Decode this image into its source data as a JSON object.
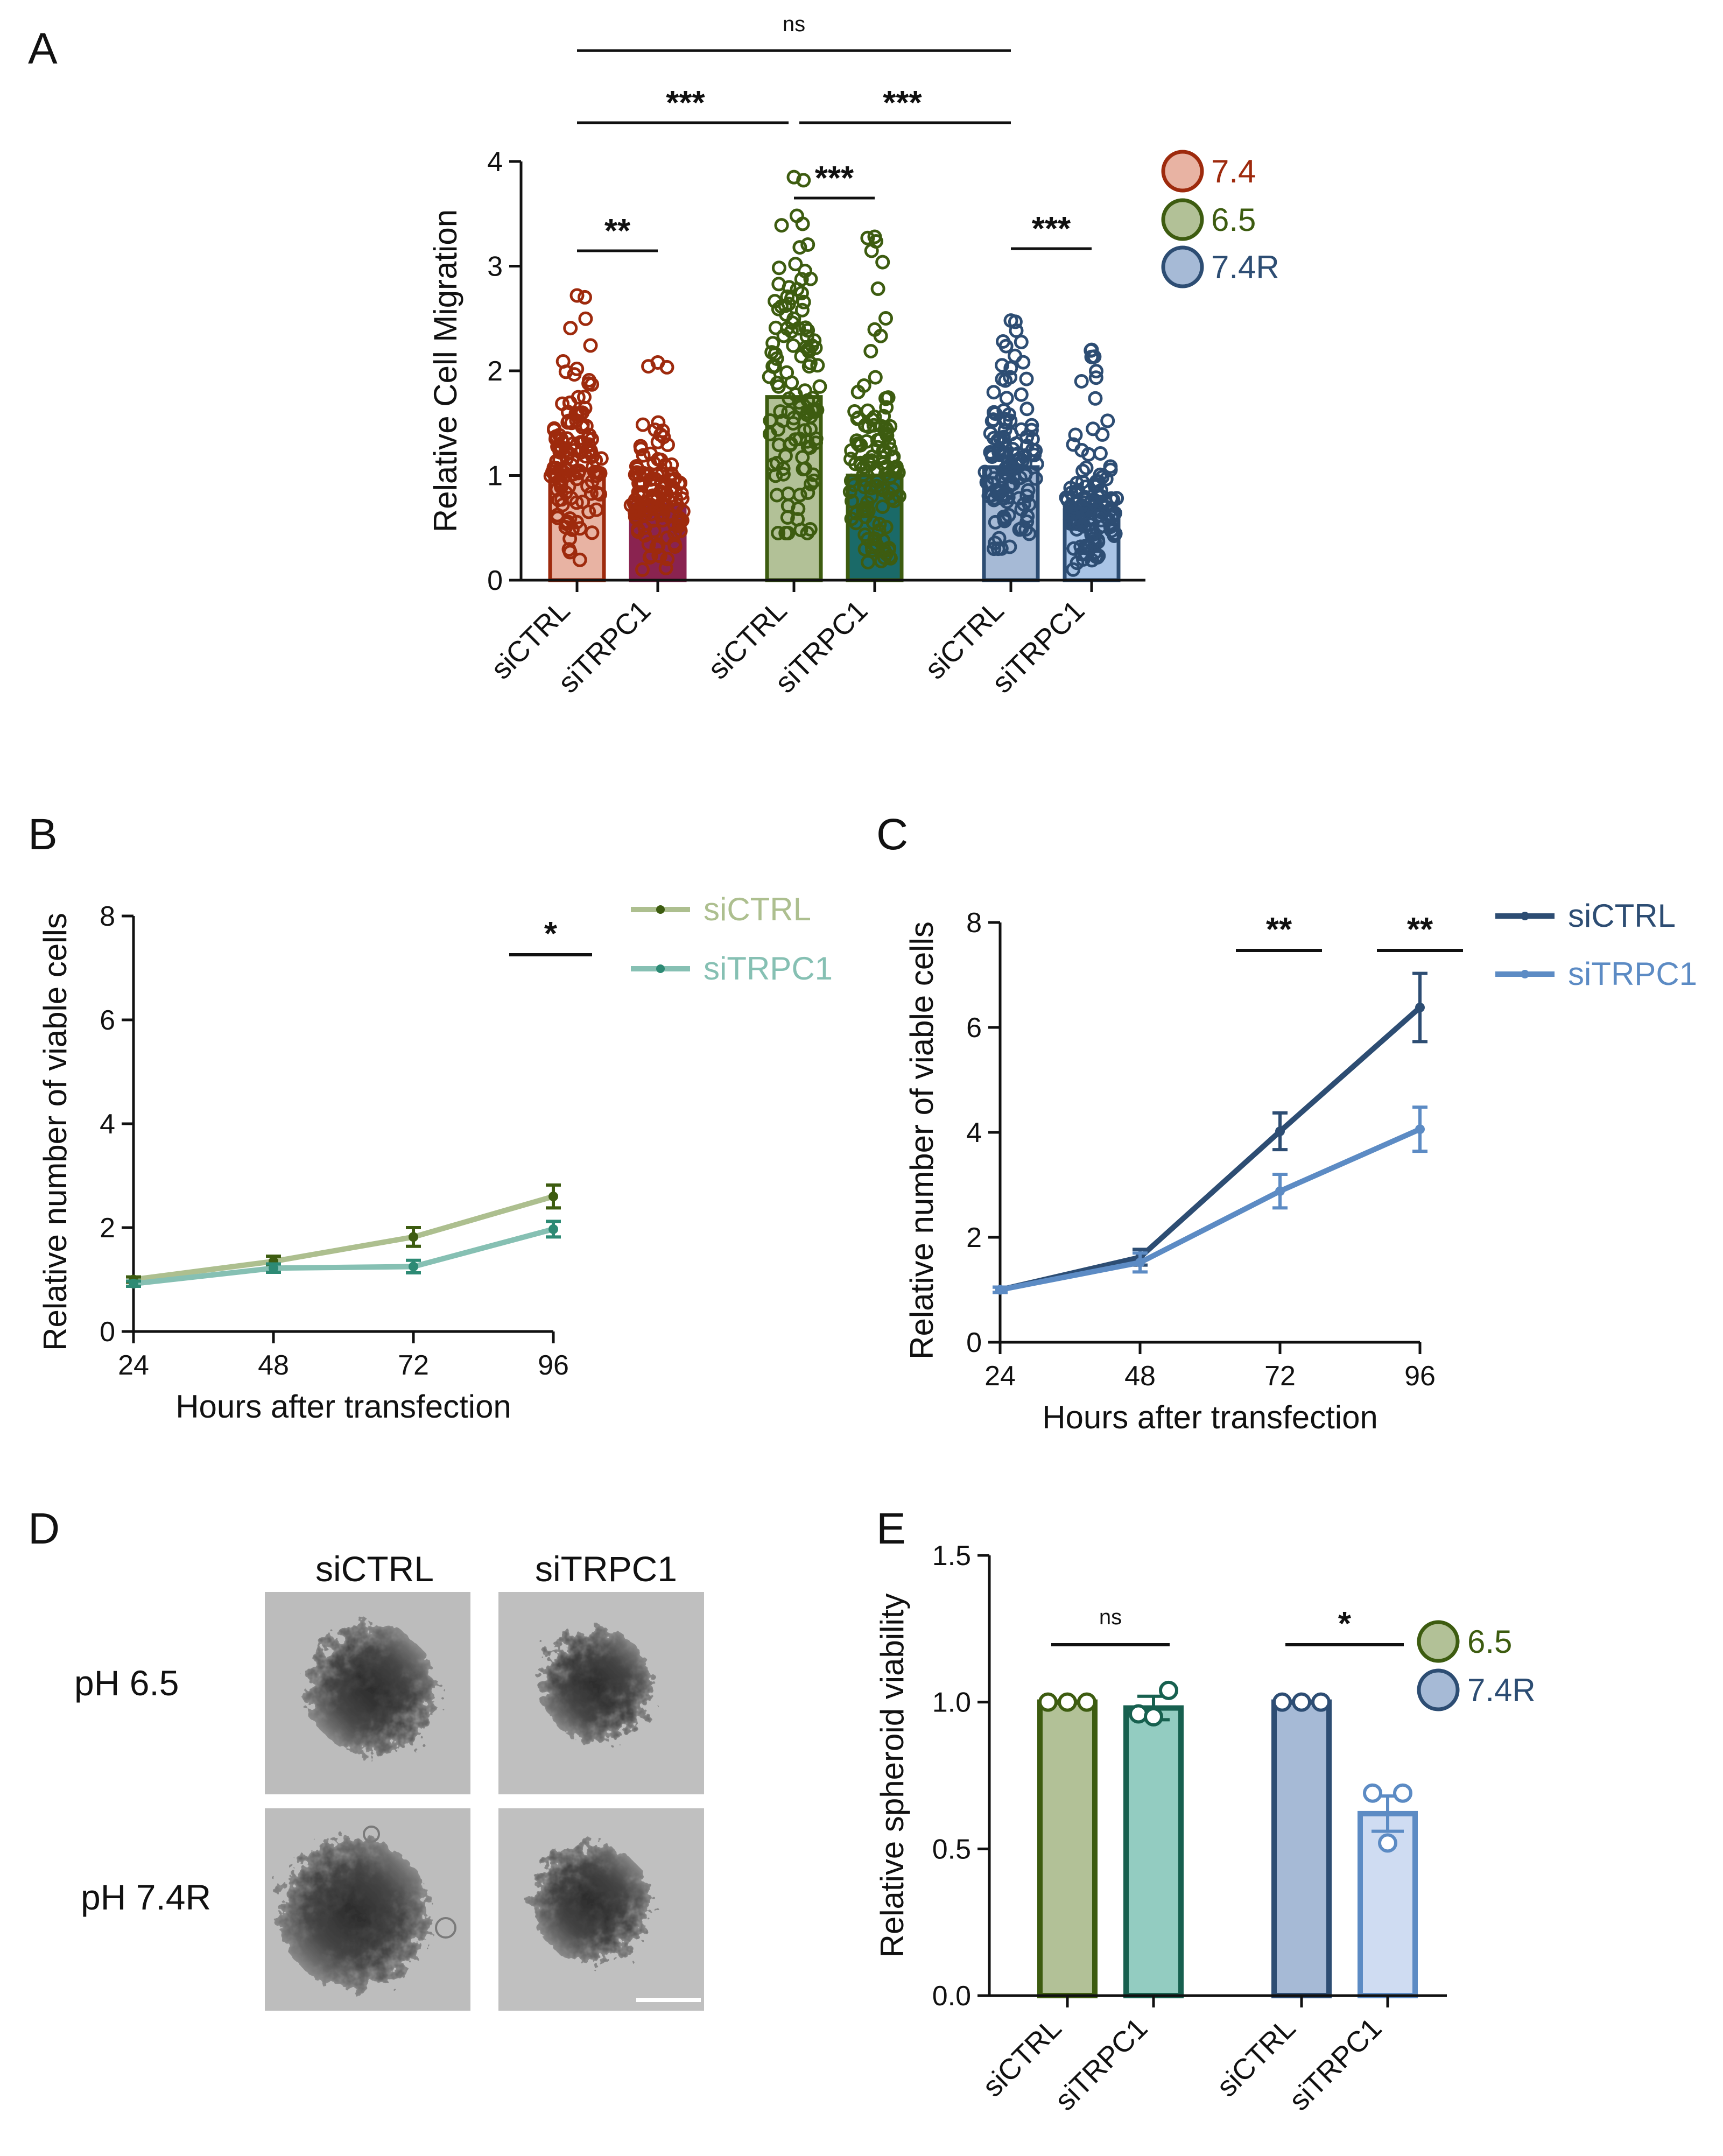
{
  "panels": {
    "A": {
      "letter": "A"
    },
    "B": {
      "letter": "B"
    },
    "C": {
      "letter": "C"
    },
    "D": {
      "letter": "D"
    },
    "E": {
      "letter": "E"
    }
  },
  "chart_data": [
    {
      "id": "A",
      "type": "bar",
      "ylabel": "Relative Cell Migration",
      "ylim": [
        0,
        4
      ],
      "yticks": [
        0,
        1,
        2,
        3,
        4
      ],
      "categories": [
        "siCTRL",
        "siTRPC1",
        "siCTRL",
        "siTRPC1",
        "siCTRL",
        "siTRPC1"
      ],
      "groups": [
        "7.4",
        "7.4",
        "6.5",
        "6.5",
        "7.4R",
        "7.4R"
      ],
      "values": [
        1.05,
        0.72,
        1.75,
        1.0,
        1.08,
        0.67
      ],
      "point_ranges": [
        [
          0.1,
          2.72
        ],
        [
          0.05,
          2.08
        ],
        [
          0.45,
          3.85
        ],
        [
          0.1,
          3.28
        ],
        [
          0.3,
          2.48
        ],
        [
          0.1,
          2.2
        ]
      ],
      "legend": [
        "7.4",
        "6.5",
        "7.4R"
      ],
      "legend_colors": [
        "#9e2a0d",
        "#3d5c10",
        "#2d4d73"
      ],
      "bar_fills": [
        "#e8b3a3",
        "#8a2350",
        "#b2c197",
        "#1a6a68",
        "#a6bad6",
        "#a9c4e6"
      ],
      "bar_edges": [
        "#9e2a0d",
        "#8a2350",
        "#3d5c10",
        "#3d5c10",
        "#2d4d73",
        "#2d4d73"
      ],
      "dot_colors": [
        "#9e2a0d",
        "#9e2a0d",
        "#3d5c10",
        "#3d5c10",
        "#2d4d73",
        "#2d4d73"
      ],
      "significance": [
        {
          "label": "ns",
          "from": 0,
          "to": 4
        },
        {
          "label": "***",
          "from": 0,
          "to": 2
        },
        {
          "label": "***",
          "from": 2,
          "to": 4
        },
        {
          "label": "**",
          "from": 0,
          "to": 1
        },
        {
          "label": "***",
          "from": 2,
          "to": 3
        },
        {
          "label": "***",
          "from": 4,
          "to": 5
        }
      ]
    },
    {
      "id": "B",
      "type": "line",
      "xlabel": "Hours after transfection",
      "ylabel": "Relative number of viable cells",
      "x": [
        24,
        48,
        72,
        96
      ],
      "xticks": [
        24,
        48,
        72,
        96
      ],
      "ylim": [
        0,
        8
      ],
      "yticks": [
        0,
        2,
        4,
        6,
        8
      ],
      "series": [
        {
          "name": "siCTRL",
          "values": [
            1.0,
            1.35,
            1.82,
            2.6
          ],
          "errors": [
            0.05,
            0.1,
            0.18,
            0.22
          ],
          "line_color": "#adbf8f",
          "marker_color": "#3d5c10"
        },
        {
          "name": "siTRPC1",
          "values": [
            0.92,
            1.22,
            1.25,
            1.97
          ],
          "errors": [
            0.05,
            0.08,
            0.12,
            0.15
          ],
          "line_color": "#86c0b3",
          "marker_color": "#2d8a74"
        }
      ],
      "significance": [
        {
          "label": "*",
          "at": 96
        }
      ]
    },
    {
      "id": "C",
      "type": "line",
      "xlabel": "Hours after transfection",
      "ylabel": "Relative number of viable cells",
      "x": [
        24,
        48,
        72,
        96
      ],
      "xticks": [
        24,
        48,
        72,
        96
      ],
      "ylim": [
        0,
        8
      ],
      "yticks": [
        0,
        2,
        4,
        6,
        8
      ],
      "series": [
        {
          "name": "siCTRL",
          "values": [
            1.0,
            1.62,
            4.02,
            6.38
          ],
          "errors": [
            0.05,
            0.15,
            0.35,
            0.65
          ],
          "line_color": "#2d4d73",
          "marker_color": "#2d4d73"
        },
        {
          "name": "siTRPC1",
          "values": [
            1.0,
            1.52,
            2.88,
            4.06
          ],
          "errors": [
            0.05,
            0.18,
            0.32,
            0.42
          ],
          "line_color": "#5c8bc4",
          "marker_color": "#5c8bc4"
        }
      ],
      "significance": [
        {
          "label": "**",
          "at": 72
        },
        {
          "label": "**",
          "at": 96
        }
      ]
    },
    {
      "id": "E",
      "type": "bar",
      "ylabel": "Relative spheroid viability",
      "ylim": [
        0,
        1.5
      ],
      "yticks": [
        "0.0",
        "0.5",
        "1.0",
        "1.5"
      ],
      "categories": [
        "siCTRL",
        "siTRPC1",
        "siCTRL",
        "siTRPC1"
      ],
      "groups": [
        "6.5",
        "6.5",
        "7.4R",
        "7.4R"
      ],
      "values": [
        1.0,
        0.98,
        1.0,
        0.62
      ],
      "errors": [
        0,
        0.04,
        0,
        0.06
      ],
      "points": [
        [
          1.0,
          1.0,
          1.0
        ],
        [
          0.96,
          1.04,
          0.95
        ],
        [
          1.0,
          1.0,
          1.0
        ],
        [
          0.69,
          0.69,
          0.52
        ]
      ],
      "legend": [
        "6.5",
        "7.4R"
      ],
      "legend_colors": [
        "#3d5c10",
        "#2d4d73"
      ],
      "bar_fills": [
        "#b2c197",
        "#93ccc1",
        "#a6bad6",
        "#cfdcf2"
      ],
      "bar_edges": [
        "#3d5c10",
        "#17604f",
        "#2d4d73",
        "#5c8bc4"
      ],
      "significance": [
        {
          "label": "ns",
          "from": 0,
          "to": 1
        },
        {
          "label": "*",
          "from": 2,
          "to": 3
        }
      ]
    }
  ],
  "microscopy": {
    "col_labels": [
      "siCTRL",
      "siTRPC1"
    ],
    "row_labels": [
      "pH 6.5",
      "pH 7.4R"
    ]
  }
}
